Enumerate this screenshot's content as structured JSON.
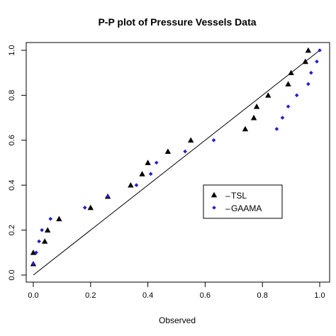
{
  "chart_data": {
    "type": "scatter",
    "title": "P-P plot of Pressure Vessels Data",
    "xlabel": "Observed",
    "ylabel": "",
    "xlim": [
      0,
      1
    ],
    "ylim": [
      0,
      1
    ],
    "x_ticks": [
      "0.0",
      "0.2",
      "0.4",
      "0.6",
      "0.8",
      "1.0"
    ],
    "y_ticks": [
      "0.0",
      "0.2",
      "0.4",
      "0.6",
      "0.8",
      "1.0"
    ],
    "grid": false,
    "legend": {
      "placement": "center-right",
      "box": true
    },
    "reference_line": {
      "from": [
        0,
        0
      ],
      "to": [
        1,
        1
      ],
      "color": "#000000"
    },
    "series": [
      {
        "name": "TSL",
        "marker": "triangle",
        "color": "#000000",
        "points": [
          [
            0.0,
            0.05
          ],
          [
            0.0,
            0.1
          ],
          [
            0.04,
            0.15
          ],
          [
            0.05,
            0.2
          ],
          [
            0.09,
            0.25
          ],
          [
            0.2,
            0.3
          ],
          [
            0.26,
            0.35
          ],
          [
            0.34,
            0.4
          ],
          [
            0.38,
            0.45
          ],
          [
            0.4,
            0.5
          ],
          [
            0.47,
            0.55
          ],
          [
            0.55,
            0.6
          ],
          [
            0.74,
            0.65
          ],
          [
            0.77,
            0.7
          ],
          [
            0.78,
            0.75
          ],
          [
            0.82,
            0.8
          ],
          [
            0.89,
            0.85
          ],
          [
            0.9,
            0.9
          ],
          [
            0.95,
            0.95
          ],
          [
            0.96,
            1.0
          ]
        ]
      },
      {
        "name": "GAAMA",
        "marker": "diamond",
        "color": "#1f1fd0",
        "points": [
          [
            0.0,
            0.05
          ],
          [
            0.01,
            0.1
          ],
          [
            0.02,
            0.15
          ],
          [
            0.03,
            0.2
          ],
          [
            0.06,
            0.25
          ],
          [
            0.18,
            0.3
          ],
          [
            0.26,
            0.35
          ],
          [
            0.36,
            0.4
          ],
          [
            0.41,
            0.45
          ],
          [
            0.43,
            0.5
          ],
          [
            0.53,
            0.55
          ],
          [
            0.63,
            0.6
          ],
          [
            0.85,
            0.65
          ],
          [
            0.87,
            0.7
          ],
          [
            0.89,
            0.75
          ],
          [
            0.92,
            0.8
          ],
          [
            0.96,
            0.85
          ],
          [
            0.97,
            0.9
          ],
          [
            0.99,
            0.95
          ],
          [
            1.0,
            1.0
          ]
        ]
      }
    ]
  }
}
